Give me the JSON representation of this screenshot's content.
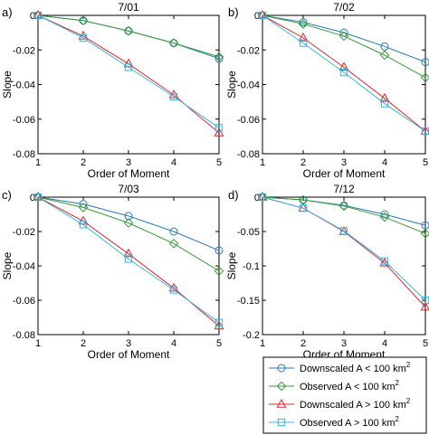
{
  "chart_data": [
    {
      "type": "line",
      "panel_label": "a)",
      "title": "7/01",
      "xlabel": "Order of Moment",
      "ylabel": "Slope",
      "x": [
        1,
        2,
        3,
        4,
        5
      ],
      "xlim": [
        1,
        5
      ],
      "ylim": [
        -0.08,
        0
      ],
      "yticks": [
        0,
        -0.02,
        -0.04,
        -0.06,
        -0.08
      ],
      "ytick_labels": [
        "0",
        "-0.02",
        "-0.04",
        "-0.06",
        "-0.08"
      ],
      "series": [
        {
          "name": "Downscaled  A < 100 km²",
          "values": [
            0,
            -0.003,
            -0.009,
            -0.016,
            -0.025
          ]
        },
        {
          "name": "Observed  A < 100 km²",
          "values": [
            0,
            -0.003,
            -0.009,
            -0.016,
            -0.024
          ]
        },
        {
          "name": "Downscaled  A > 100 km²",
          "values": [
            0,
            -0.012,
            -0.028,
            -0.046,
            -0.068
          ]
        },
        {
          "name": "Observed  A > 100 km²",
          "values": [
            0,
            -0.013,
            -0.03,
            -0.047,
            -0.065
          ]
        }
      ]
    },
    {
      "type": "line",
      "panel_label": "b)",
      "title": "7/02",
      "xlabel": "Order of Moment",
      "ylabel": "Slope",
      "x": [
        1,
        2,
        3,
        4,
        5
      ],
      "xlim": [
        1,
        5
      ],
      "ylim": [
        -0.08,
        0
      ],
      "yticks": [
        0,
        -0.02,
        -0.04,
        -0.06,
        -0.08
      ],
      "ytick_labels": [
        "0",
        "-0.02",
        "-0.04",
        "-0.06",
        "-0.08"
      ],
      "series": [
        {
          "name": "Downscaled  A < 100 km²",
          "values": [
            0,
            -0.004,
            -0.01,
            -0.018,
            -0.027
          ]
        },
        {
          "name": "Observed  A < 100 km²",
          "values": [
            0,
            -0.005,
            -0.012,
            -0.023,
            -0.036
          ]
        },
        {
          "name": "Downscaled  A > 100 km²",
          "values": [
            0,
            -0.013,
            -0.03,
            -0.048,
            -0.067
          ]
        },
        {
          "name": "Observed  A > 100 km²",
          "values": [
            0,
            -0.016,
            -0.033,
            -0.051,
            -0.067
          ]
        }
      ]
    },
    {
      "type": "line",
      "panel_label": "c)",
      "title": "7/03",
      "xlabel": "Order of Moment",
      "ylabel": "Slope",
      "x": [
        1,
        2,
        3,
        4,
        5
      ],
      "xlim": [
        1,
        5
      ],
      "ylim": [
        -0.08,
        0
      ],
      "yticks": [
        0,
        -0.02,
        -0.04,
        -0.06,
        -0.08
      ],
      "ytick_labels": [
        "0",
        "-0.02",
        "-0.04",
        "-0.06",
        "-0.08"
      ],
      "series": [
        {
          "name": "Downscaled  A < 100 km²",
          "values": [
            0,
            -0.004,
            -0.011,
            -0.02,
            -0.031
          ]
        },
        {
          "name": "Observed  A < 100 km²",
          "values": [
            0,
            -0.006,
            -0.015,
            -0.027,
            -0.043
          ]
        },
        {
          "name": "Downscaled  A > 100 km²",
          "values": [
            0,
            -0.014,
            -0.033,
            -0.053,
            -0.075
          ]
        },
        {
          "name": "Observed  A > 100 km²",
          "values": [
            0,
            -0.016,
            -0.036,
            -0.054,
            -0.073
          ]
        }
      ]
    },
    {
      "type": "line",
      "panel_label": "d)",
      "title": "7/12",
      "xlabel": "Order of Moment",
      "ylabel": "Slope",
      "x": [
        1,
        2,
        3,
        4,
        5
      ],
      "xlim": [
        1,
        5
      ],
      "ylim": [
        -0.2,
        0
      ],
      "yticks": [
        0,
        -0.05,
        -0.1,
        -0.15,
        -0.2
      ],
      "ytick_labels": [
        "0",
        "-0.05",
        "-0.1",
        "-0.15",
        "-0.2"
      ],
      "series": [
        {
          "name": "Downscaled  A < 100 km²",
          "values": [
            0,
            -0.004,
            -0.012,
            -0.025,
            -0.041
          ]
        },
        {
          "name": "Observed  A < 100 km²",
          "values": [
            0,
            -0.004,
            -0.013,
            -0.029,
            -0.053
          ]
        },
        {
          "name": "Downscaled  A > 100 km²",
          "values": [
            0,
            -0.016,
            -0.05,
            -0.096,
            -0.16
          ]
        },
        {
          "name": "Observed  A > 100 km²",
          "values": [
            0,
            -0.016,
            -0.049,
            -0.093,
            -0.15
          ]
        }
      ]
    }
  ],
  "xtick_labels": [
    "1",
    "2",
    "3",
    "4",
    "5"
  ],
  "legend": {
    "placement": "bottom-right",
    "entries": [
      {
        "prefix": "Downscaled",
        "var": "A",
        "op": "<",
        "value": "100",
        "unit": "km",
        "sup": "2",
        "color": "#2a7ab5",
        "marker": "circle"
      },
      {
        "prefix": "Observed",
        "var": "A",
        "op": "<",
        "value": "100",
        "unit": "km",
        "sup": "2",
        "color": "#3a9a3a",
        "marker": "diamond"
      },
      {
        "prefix": "Downscaled",
        "var": "A",
        "op": ">",
        "value": "100",
        "unit": "km",
        "sup": "2",
        "color": "#e0262b",
        "marker": "triangle"
      },
      {
        "prefix": "Observed",
        "var": "A",
        "op": ">",
        "value": "100",
        "unit": "km",
        "sup": "2",
        "color": "#34b6e4",
        "marker": "square"
      }
    ]
  }
}
